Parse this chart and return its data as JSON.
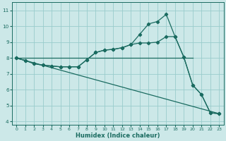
{
  "title": "",
  "xlabel": "Humidex (Indice chaleur)",
  "xlim": [
    -0.5,
    23.5
  ],
  "ylim": [
    3.8,
    11.5
  ],
  "yticks": [
    4,
    5,
    6,
    7,
    8,
    9,
    10,
    11
  ],
  "xticks": [
    0,
    1,
    2,
    3,
    4,
    5,
    6,
    7,
    8,
    9,
    10,
    11,
    12,
    13,
    14,
    15,
    16,
    17,
    18,
    19,
    20,
    21,
    22,
    23
  ],
  "background_color": "#cce8e8",
  "grid_color": "#99cccc",
  "line_color": "#1a6b60",
  "series_main": {
    "x": [
      0,
      1,
      2,
      3,
      4,
      5,
      6,
      7,
      8,
      9,
      10,
      11,
      12,
      13,
      14,
      15,
      16,
      17,
      18,
      19,
      20,
      21,
      22,
      23
    ],
    "y": [
      8.0,
      7.85,
      7.65,
      7.55,
      7.5,
      7.45,
      7.45,
      7.45,
      7.9,
      8.35,
      8.5,
      8.55,
      8.65,
      8.85,
      9.5,
      10.15,
      10.3,
      10.75,
      9.35,
      8.05,
      6.3,
      5.7,
      4.55,
      4.5
    ]
  },
  "series_smooth": {
    "x": [
      0,
      1,
      2,
      3,
      4,
      5,
      6,
      7,
      8,
      9,
      10,
      11,
      12,
      13,
      14,
      15,
      16,
      17,
      18,
      19,
      20,
      21,
      22,
      23
    ],
    "y": [
      8.0,
      7.85,
      7.65,
      7.55,
      7.5,
      7.45,
      7.45,
      7.45,
      7.9,
      8.35,
      8.5,
      8.55,
      8.65,
      8.85,
      8.95,
      8.95,
      9.0,
      9.35,
      9.35,
      8.05,
      6.3,
      5.7,
      4.55,
      4.5
    ]
  },
  "series_diag": {
    "x": [
      0,
      23
    ],
    "y": [
      8.0,
      4.5
    ]
  },
  "series_horiz": {
    "x": [
      0,
      20
    ],
    "y": [
      8.0,
      8.0
    ]
  }
}
